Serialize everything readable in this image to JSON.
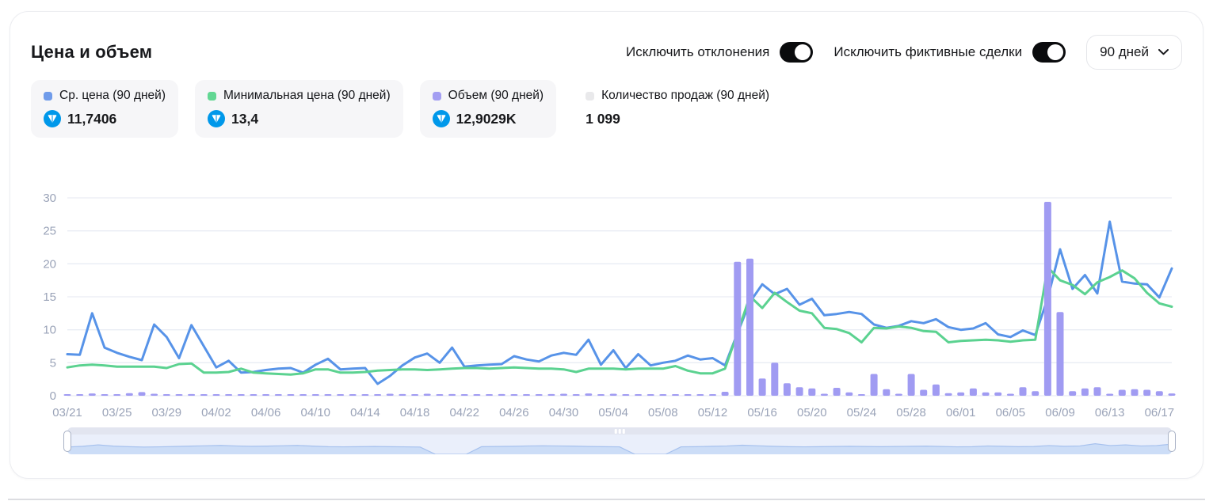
{
  "header": {
    "title": "Цена и объем",
    "toggles": [
      {
        "label": "Исключить отклонения",
        "on": true
      },
      {
        "label": "Исключить фиктивные сделки",
        "on": true
      }
    ],
    "period_select": {
      "value": "90 дней"
    }
  },
  "legend": [
    {
      "label": "Ср. цена (90 дней)",
      "value": "11,7406",
      "chip_color": "#6f9bea",
      "ton_icon": true
    },
    {
      "label": "Минимальная цена (90 дней)",
      "value": "13,4",
      "chip_color": "#62d793",
      "ton_icon": true
    },
    {
      "label": "Объем (90 дней)",
      "value": "12,9029K",
      "chip_color": "#a39ef2",
      "ton_icon": true
    },
    {
      "label": "Количество продаж (90 дней)",
      "value": "1 099",
      "chip_color": "#e9e9eb",
      "ton_icon": false
    }
  ],
  "colors": {
    "avg_price_line": "#5793e8",
    "min_price_line": "#5bd290",
    "volume_bar": "#a09bf2",
    "grid": "#e9ecf4",
    "axis_label": "#9aa3b8",
    "ton_brand": "#0098EA",
    "minimap_fill": "#ccddf7",
    "minimap_stroke": "#a6c1ee"
  },
  "chart_data": {
    "type": "composed",
    "title": "Цена и объем",
    "xlabel": "",
    "ylabel": "",
    "ylim": [
      0,
      30
    ],
    "y_ticks": [
      0,
      5,
      10,
      15,
      20,
      25,
      30
    ],
    "x_tick_step": 4,
    "grid": "horizontal-only",
    "categories": [
      "03/21",
      "03/22",
      "03/23",
      "03/24",
      "03/25",
      "03/26",
      "03/27",
      "03/28",
      "03/29",
      "03/30",
      "03/31",
      "04/01",
      "04/02",
      "04/03",
      "04/04",
      "04/05",
      "04/06",
      "04/07",
      "04/08",
      "04/09",
      "04/10",
      "04/11",
      "04/12",
      "04/13",
      "04/14",
      "04/15",
      "04/16",
      "04/17",
      "04/18",
      "04/19",
      "04/20",
      "04/21",
      "04/22",
      "04/23",
      "04/24",
      "04/25",
      "04/26",
      "04/27",
      "04/28",
      "04/29",
      "04/30",
      "05/01",
      "05/02",
      "05/03",
      "05/04",
      "05/05",
      "05/06",
      "05/07",
      "05/08",
      "05/09",
      "05/10",
      "05/11",
      "05/12",
      "05/13",
      "05/14",
      "05/15",
      "05/16",
      "05/17",
      "05/18",
      "05/19",
      "05/20",
      "05/21",
      "05/22",
      "05/23",
      "05/24",
      "05/25",
      "05/26",
      "05/27",
      "05/28",
      "05/29",
      "05/30",
      "05/31",
      "06/01",
      "06/02",
      "06/03",
      "06/04",
      "06/05",
      "06/06",
      "06/07",
      "06/08",
      "06/09",
      "06/10",
      "06/11",
      "06/12",
      "06/13",
      "06/14",
      "06/15",
      "06/16",
      "06/17",
      "06/18"
    ],
    "series": [
      {
        "name": "Ср. цена (90 дней)",
        "type": "line",
        "color": "#5793e8",
        "values": [
          6.3,
          6.2,
          12.5,
          7.3,
          6.5,
          5.9,
          5.4,
          10.8,
          8.9,
          5.7,
          10.7,
          7.5,
          4.3,
          5.3,
          3.5,
          3.6,
          3.9,
          4.1,
          4.2,
          3.5,
          4.7,
          5.6,
          4.0,
          4.1,
          4.2,
          1.8,
          3.0,
          4.6,
          5.8,
          6.4,
          5.0,
          7.3,
          4.4,
          4.6,
          4.7,
          4.8,
          6.0,
          5.5,
          5.2,
          6.1,
          6.5,
          6.2,
          8.5,
          4.7,
          6.9,
          4.2,
          6.3,
          4.6,
          5.0,
          5.3,
          6.1,
          5.5,
          5.7,
          4.6,
          9.5,
          14.2,
          16.9,
          15.4,
          16.2,
          13.8,
          14.7,
          12.2,
          12.4,
          12.7,
          12.4,
          10.8,
          10.3,
          10.6,
          11.3,
          11.0,
          11.6,
          10.4,
          10.0,
          10.2,
          11.0,
          9.3,
          8.9,
          9.9,
          9.2,
          14.8,
          22.2,
          16.2,
          18.3,
          15.5,
          26.4,
          17.3,
          17.0,
          16.9,
          14.9,
          19.3
        ]
      },
      {
        "name": "Минимальная цена (90 дней)",
        "type": "line",
        "color": "#5bd290",
        "values": [
          4.3,
          4.6,
          4.7,
          4.6,
          4.4,
          4.4,
          4.4,
          4.4,
          4.2,
          4.8,
          4.9,
          3.5,
          3.5,
          3.6,
          4.1,
          3.5,
          3.4,
          3.3,
          3.2,
          3.4,
          4.0,
          4.0,
          3.5,
          3.5,
          3.6,
          3.8,
          3.9,
          4.0,
          4.0,
          3.9,
          4.0,
          4.1,
          4.2,
          4.2,
          4.1,
          4.2,
          4.3,
          4.2,
          4.1,
          4.1,
          4.0,
          3.6,
          4.1,
          4.1,
          4.1,
          4.0,
          4.1,
          4.1,
          4.1,
          4.5,
          3.8,
          3.4,
          3.4,
          4.1,
          9.5,
          15.1,
          13.3,
          15.6,
          14.2,
          12.9,
          12.5,
          10.3,
          10.1,
          9.5,
          8.1,
          10.3,
          10.2,
          10.5,
          10.3,
          9.8,
          9.7,
          8.1,
          8.3,
          8.4,
          8.5,
          8.4,
          8.2,
          8.4,
          8.5,
          19.5,
          17.5,
          16.8,
          15.4,
          17.2,
          18.0,
          19.0,
          17.8,
          15.6,
          14.0,
          13.5
        ]
      },
      {
        "name": "Объем (90 дней)",
        "type": "bar",
        "color": "#a09bf2",
        "values": [
          0.15,
          0.2,
          0.35,
          0.1,
          0.15,
          0.4,
          0.55,
          0.3,
          0.15,
          0.2,
          0.25,
          0.2,
          0.15,
          0.1,
          0.05,
          0.15,
          0.1,
          0.1,
          0.15,
          0.1,
          0.2,
          0.15,
          0.1,
          0.15,
          0.15,
          0.1,
          0.3,
          0.25,
          0.2,
          0.3,
          0.2,
          0.25,
          0.15,
          0.2,
          0.2,
          0.25,
          0.2,
          0.15,
          0.2,
          0.25,
          0.3,
          0.2,
          0.35,
          0.2,
          0.3,
          0.15,
          0.1,
          0.05,
          0.15,
          0.1,
          0.15,
          0.1,
          0.15,
          0.6,
          20.3,
          20.8,
          2.6,
          5.0,
          1.9,
          1.3,
          1.1,
          0.3,
          1.2,
          0.5,
          0.15,
          3.3,
          1.0,
          0.3,
          3.3,
          0.9,
          1.7,
          0.4,
          0.5,
          1.1,
          0.5,
          0.5,
          0.3,
          1.3,
          0.7,
          29.4,
          12.7,
          0.7,
          1.1,
          1.3,
          0.3,
          0.9,
          1.0,
          0.9,
          0.7,
          0.35
        ]
      },
      {
        "name": "Количество продаж (90 дней)",
        "type": "hidden",
        "color": "#e9e9eb",
        "values": []
      }
    ],
    "legend_position": "top-left"
  },
  "minimap": {
    "points": [
      0.4,
      0.44,
      0.52,
      0.45,
      0.42,
      0.4,
      0.41,
      0.43,
      0.45,
      0.47,
      0.49,
      0.46,
      0.44,
      0.45,
      0.47,
      0.49,
      0.45,
      0.42,
      0.41,
      0.42,
      0.43,
      0.42,
      0.41,
      0.4,
      0,
      0,
      0,
      0.42,
      0.43,
      0.44,
      0.46,
      0.47,
      0.46,
      0.45,
      0.43,
      0.42,
      0.41,
      0,
      0,
      0,
      0.41,
      0.42,
      0.44,
      0.46,
      0.5,
      0.47,
      0.44,
      0.42,
      0.41,
      0.42,
      0.43,
      0.44,
      0.43,
      0.42,
      0.43,
      0.44,
      0.45,
      0.43,
      0.41,
      0.42,
      0.46,
      0.44,
      0.42,
      0.43,
      0.48,
      0.44,
      0.46,
      0.58,
      0.48,
      0.52,
      0.46,
      0.48,
      0.56
    ]
  }
}
